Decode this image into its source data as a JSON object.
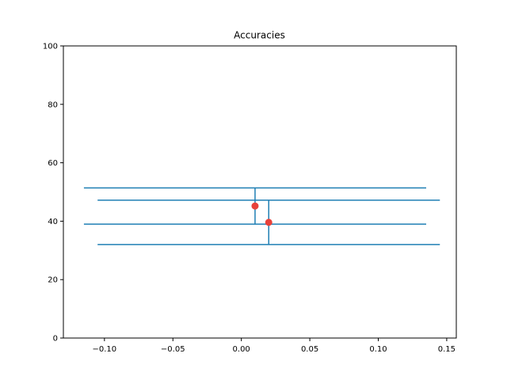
{
  "chart_data": {
    "type": "scatter",
    "title": "Accuracies",
    "xlabel": "",
    "ylabel": "",
    "xlim": [
      -0.13,
      0.157
    ],
    "ylim": [
      0,
      100
    ],
    "x_ticks": [
      -0.1,
      -0.05,
      0.0,
      0.05,
      0.1,
      0.15
    ],
    "x_tick_labels": [
      "−0.10",
      "−0.05",
      "0.00",
      "0.05",
      "0.10",
      "0.15"
    ],
    "y_ticks": [
      0,
      20,
      40,
      60,
      80,
      100
    ],
    "y_tick_labels": [
      "0",
      "20",
      "40",
      "60",
      "80",
      "100"
    ],
    "grid": false,
    "series": [
      {
        "x": [
          0.01,
          0.02
        ],
        "y": [
          45.2,
          39.6
        ],
        "yerr": [
          6.2,
          7.6
        ],
        "xerr": [
          0.125,
          0.125
        ],
        "marker_color": "#e8413a",
        "errorbar_color": "#1f7fb4"
      }
    ]
  }
}
